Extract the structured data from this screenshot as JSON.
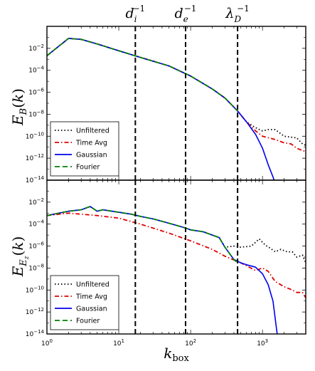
{
  "chart_data": [
    {
      "type": "line",
      "ylabel": "E_B(k)",
      "x_scale": "log",
      "y_scale": "log",
      "xlim": [
        1,
        4000
      ],
      "ylim": [
        1e-14,
        1
      ],
      "y_tick_labels": [
        "10^-2",
        "10^-4",
        "10^-6",
        "10^-8",
        "10^-10",
        "10^-12",
        "10^-14"
      ],
      "legend": {
        "position": "lower-left",
        "entries": [
          "Unfiltered",
          "Time Avg",
          "Gaussian",
          "Fourier"
        ]
      },
      "series": [
        {
          "name": "Unfiltered",
          "color": "#000000",
          "style": "dotted",
          "x": [
            1,
            2,
            3,
            5,
            10,
            20,
            50,
            100,
            200,
            300,
            450,
            600,
            800,
            1000,
            1200,
            1500,
            2000,
            3000,
            3600,
            4000
          ],
          "y": [
            0.0021,
            0.08,
            0.065,
            0.025,
            0.006,
            0.0015,
            0.00025,
            3e-05,
            2e-06,
            3e-07,
            2e-08,
            2e-09,
            6e-10,
            3e-10,
            4e-10,
            4e-10,
            1e-10,
            7e-11,
            2e-11,
            1.5e-11
          ]
        },
        {
          "name": "Time Avg",
          "color": "#e00000",
          "style": "dashdot",
          "x": [
            1,
            2,
            3,
            5,
            10,
            20,
            50,
            100,
            200,
            300,
            450,
            600,
            800,
            1000,
            1500,
            2000,
            2500,
            3000,
            3600,
            4000
          ],
          "y": [
            0.0021,
            0.08,
            0.065,
            0.025,
            0.006,
            0.0015,
            0.00025,
            3e-05,
            2e-06,
            3e-07,
            2e-08,
            2e-09,
            3e-10,
            1e-10,
            5e-11,
            2.5e-11,
            2e-11,
            8e-12,
            5e-12,
            4e-12
          ]
        },
        {
          "name": "Gaussian",
          "color": "#0000ee",
          "style": "solid",
          "x": [
            1,
            2,
            3,
            5,
            10,
            20,
            50,
            100,
            200,
            300,
            450,
            600,
            800,
            1000,
            1200,
            1400,
            1500
          ],
          "y": [
            0.0021,
            0.08,
            0.065,
            0.025,
            0.006,
            0.0015,
            0.00025,
            3e-05,
            2e-06,
            3e-07,
            2e-08,
            2e-09,
            1.5e-10,
            8e-12,
            2.5e-13,
            2e-14,
            5e-15
          ]
        },
        {
          "name": "Fourier",
          "color": "#008000",
          "style": "dashed",
          "x": [
            1,
            2,
            3,
            5,
            10,
            20,
            50,
            100,
            200,
            300,
            450
          ],
          "y": [
            0.0021,
            0.08,
            0.065,
            0.025,
            0.006,
            0.0015,
            0.00025,
            3e-05,
            2e-06,
            3e-07,
            2e-08
          ]
        }
      ]
    },
    {
      "type": "line",
      "ylabel": "E_{E_z}(k)",
      "xlabel": "k_box",
      "x_scale": "log",
      "y_scale": "log",
      "xlim": [
        1,
        4000
      ],
      "ylim": [
        1e-14,
        1
      ],
      "x_tick_labels": [
        "10^0",
        "10^1",
        "10^2",
        "10^3"
      ],
      "y_tick_labels": [
        "10^-2",
        "10^-4",
        "10^-6",
        "10^-8",
        "10^-10",
        "10^-12",
        "10^-14"
      ],
      "legend": {
        "position": "lower-left",
        "entries": [
          "Unfiltered",
          "Time Avg",
          "Gaussian",
          "Fourier"
        ]
      },
      "series": [
        {
          "name": "Unfiltered",
          "color": "#000000",
          "style": "dotted",
          "x": [
            1,
            2,
            3,
            4,
            5,
            6,
            8,
            10,
            15,
            20,
            30,
            50,
            80,
            100,
            150,
            200,
            250,
            300,
            400,
            500,
            700,
            900,
            1100,
            1300,
            1500,
            1800,
            2200,
            2600,
            3000,
            3600,
            4000
          ],
          "y": [
            0.0006,
            0.0015,
            0.002,
            0.004,
            0.0015,
            0.002,
            0.0015,
            0.0012,
            0.0008,
            0.0005,
            0.0003,
            0.00012,
            5e-05,
            3e-05,
            2e-05,
            1e-05,
            6e-06,
            8e-07,
            1e-06,
            8e-07,
            1e-06,
            4.5e-06,
            1.2e-06,
            6e-07,
            3e-07,
            5e-07,
            3e-07,
            3e-07,
            1e-07,
            1.5e-07,
            3e-08
          ]
        },
        {
          "name": "Time Avg",
          "color": "#e00000",
          "style": "dashdot",
          "x": [
            1,
            2,
            3,
            5,
            10,
            20,
            50,
            100,
            200,
            300,
            500,
            800,
            1000,
            1200,
            1500,
            2000,
            2600,
            3000,
            3600,
            4000
          ],
          "y": [
            0.0006,
            0.001,
            0.0008,
            0.0006,
            0.00035,
            0.0001,
            1.5e-05,
            3e-06,
            5e-07,
            1.2e-07,
            3e-08,
            6e-09,
            1e-08,
            5e-09,
            6e-10,
            2e-10,
            1e-10,
            6e-11,
            6e-11,
            2e-11
          ]
        },
        {
          "name": "Gaussian",
          "color": "#0000ee",
          "style": "solid",
          "x": [
            1,
            2,
            3,
            4,
            5,
            6,
            8,
            10,
            15,
            20,
            30,
            50,
            80,
            100,
            150,
            200,
            250,
            300,
            400,
            500,
            600,
            800,
            1000,
            1200,
            1400,
            1600
          ],
          "y": [
            0.0006,
            0.0015,
            0.002,
            0.004,
            0.0015,
            0.002,
            0.0015,
            0.0012,
            0.0008,
            0.0005,
            0.0003,
            0.00012,
            5e-05,
            3e-05,
            2e-05,
            1e-05,
            6e-06,
            8e-07,
            6e-08,
            3e-08,
            2e-08,
            1.2e-08,
            3e-09,
            3e-10,
            1e-11,
            1e-14
          ]
        },
        {
          "name": "Fourier",
          "color": "#008000",
          "style": "dashed",
          "x": [
            1,
            2,
            3,
            4,
            5,
            6,
            8,
            10,
            15,
            20,
            30,
            50,
            80,
            100,
            150,
            200,
            250,
            300,
            400,
            450
          ],
          "y": [
            0.0006,
            0.0015,
            0.002,
            0.004,
            0.0015,
            0.002,
            0.0015,
            0.0012,
            0.0008,
            0.0005,
            0.0003,
            0.00012,
            5e-05,
            3e-05,
            2e-05,
            1e-05,
            6e-06,
            8e-07,
            6e-08,
            3e-08
          ]
        }
      ]
    }
  ],
  "scale_markers": [
    {
      "label": "d_i^-1",
      "k": 17
    },
    {
      "label": "d_e^-1",
      "k": 85
    },
    {
      "label": "λ_D^-1",
      "k": 450
    }
  ]
}
